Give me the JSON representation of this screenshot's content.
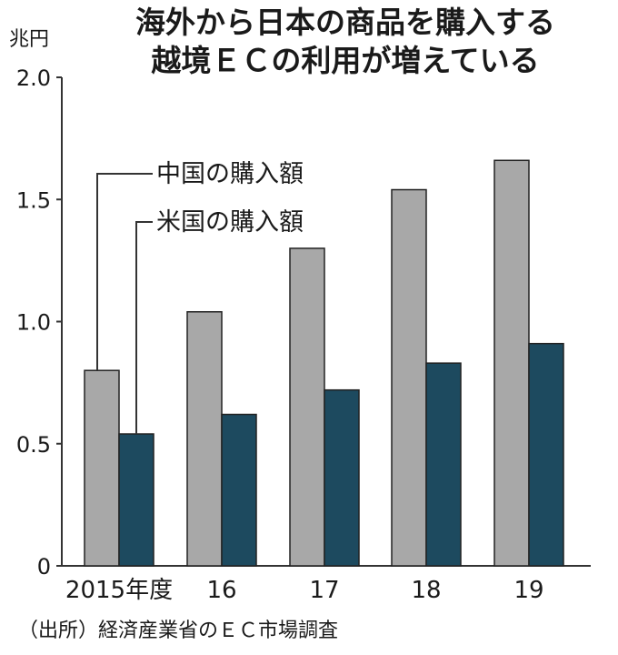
{
  "chart_data": {
    "type": "bar",
    "title_lines": [
      "海外から日本の商品を購入する",
      "越境ＥＣの利用が増えている"
    ],
    "unit_label": "兆円",
    "categories": [
      "2015年度",
      "16",
      "17",
      "18",
      "19"
    ],
    "series": [
      {
        "name": "中国の購入額",
        "values": [
          0.8,
          1.04,
          1.3,
          1.54,
          1.66
        ],
        "color": "#a8a8a8"
      },
      {
        "name": "米国の購入額",
        "values": [
          0.54,
          0.62,
          0.72,
          0.83,
          0.91
        ],
        "color": "#1d4a5f"
      }
    ],
    "ylim": [
      0,
      2.0
    ],
    "yticks": [
      "0",
      "0.5",
      "1.0",
      "1.5",
      "2.0"
    ],
    "ytick_values": [
      0,
      0.5,
      1.0,
      1.5,
      2.0
    ],
    "grid": false,
    "source": "（出所）経済産業省のＥＣ市場調査"
  }
}
